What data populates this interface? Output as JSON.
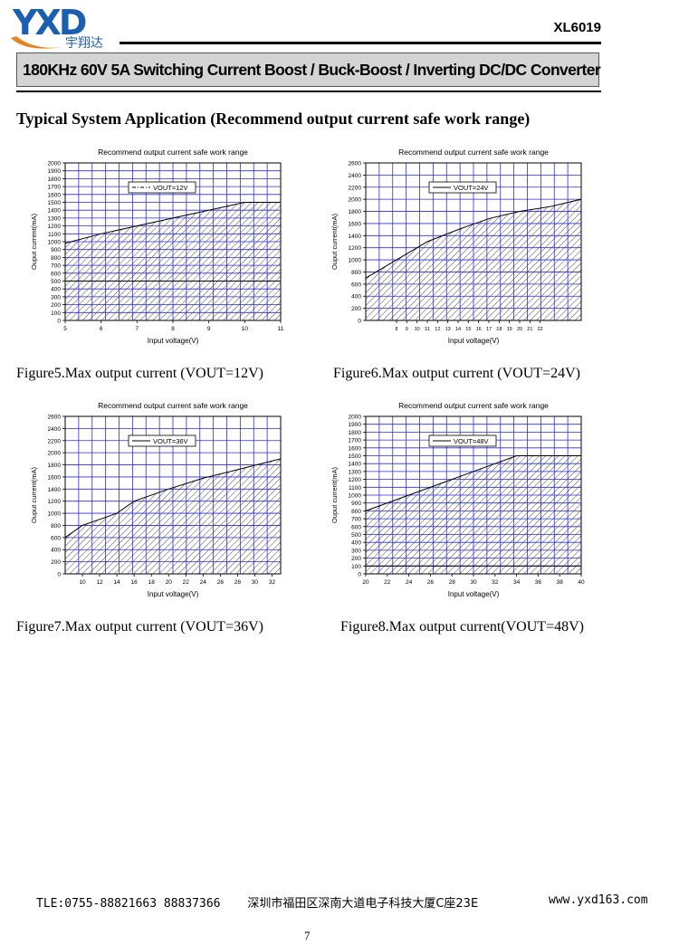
{
  "header": {
    "logo_letters": "YXD",
    "logo_text": "宇翔达",
    "part_number": "XL6019",
    "title": "180KHz 60V 5A Switching Current Boost / Buck-Boost / Inverting DC/DC Converter",
    "colors": {
      "logo_blue": "#1b5fae",
      "logo_orange": "#e8821e",
      "title_bg": "#d4d4d4"
    }
  },
  "section": {
    "heading": "Typical System Application (Recommend output current safe work range)"
  },
  "captions": [
    "Figure5.Max output current (VOUT=12V)",
    "Figure6.Max output current (VOUT=24V)",
    "Figure7.Max output current (VOUT=36V)",
    "Figure8.Max output current(VOUT=48V)"
  ],
  "chart_data": [
    {
      "type": "area",
      "title": "Recommend output current safe work range",
      "xlabel": "Input voltage(V)",
      "ylabel": "Ouput current(mA)",
      "legend": "VOUT=12V",
      "legend_style": "dash-dot",
      "xlim": [
        5,
        11
      ],
      "ylim": [
        0,
        2000
      ],
      "x_ticks": [
        "5",
        "6",
        "7",
        "8",
        "9",
        "10",
        "11"
      ],
      "y_ticks": [
        "0",
        "100",
        "200",
        "300",
        "400",
        "500",
        "600",
        "700",
        "800",
        "900",
        "1000",
        "1100",
        "1200",
        "1300",
        "1400",
        "1500",
        "1600",
        "1700",
        "1800",
        "1900",
        "2000"
      ],
      "grid": true,
      "points": [
        [
          5,
          980
        ],
        [
          6,
          1100
        ],
        [
          7,
          1200
        ],
        [
          8,
          1300
        ],
        [
          9,
          1400
        ],
        [
          10,
          1500
        ],
        [
          11,
          1500
        ]
      ],
      "reference_line": 500
    },
    {
      "type": "area",
      "title": "Recommend output current safe work range",
      "xlabel": "Input voltage(V)",
      "ylabel": "Ouput current(mA)",
      "legend": "VOUT=24V",
      "legend_style": "solid",
      "xlim": [
        5,
        26
      ],
      "ylim": [
        0,
        2600
      ],
      "x_ticks": [
        "8",
        "9",
        "10",
        "11",
        "12",
        "13",
        "14",
        "15",
        "16",
        "17",
        "18",
        "19",
        "20",
        "21",
        "22"
      ],
      "y_ticks": [
        "0",
        "200",
        "400",
        "600",
        "800",
        "1000",
        "1200",
        "1400",
        "1600",
        "1800",
        "2000",
        "2200",
        "2400",
        "2600"
      ],
      "grid": true,
      "points": [
        [
          5,
          700
        ],
        [
          8,
          1000
        ],
        [
          11,
          1300
        ],
        [
          14,
          1500
        ],
        [
          17,
          1680
        ],
        [
          20,
          1800
        ],
        [
          23,
          1880
        ],
        [
          26,
          2000
        ]
      ]
    },
    {
      "type": "area",
      "title": "Recommend output current safe work range",
      "xlabel": "Input voltage(V)",
      "ylabel": "Ouput current(mA)",
      "legend": "VOUT=36V",
      "legend_style": "solid",
      "xlim": [
        8,
        33
      ],
      "ylim": [
        0,
        2600
      ],
      "x_ticks": [
        "10",
        "12",
        "14",
        "16",
        "18",
        "20",
        "22",
        "24",
        "26",
        "28",
        "30",
        "32"
      ],
      "y_ticks": [
        "0",
        "200",
        "400",
        "600",
        "800",
        "1000",
        "1200",
        "1400",
        "1600",
        "1800",
        "2000",
        "2200",
        "2400",
        "2600"
      ],
      "grid": true,
      "points": [
        [
          8,
          600
        ],
        [
          10,
          800
        ],
        [
          14,
          1000
        ],
        [
          16,
          1200
        ],
        [
          20,
          1400
        ],
        [
          24,
          1580
        ],
        [
          28,
          1720
        ],
        [
          33,
          1900
        ]
      ]
    },
    {
      "type": "area",
      "title": "Recommend output current safe work range",
      "xlabel": "Input voltage(V)",
      "ylabel": "Ouput current(mA)",
      "legend": "VOUT=48V",
      "legend_style": "solid",
      "xlim": [
        20,
        40
      ],
      "ylim": [
        0,
        2000
      ],
      "x_ticks": [
        "20",
        "22",
        "24",
        "26",
        "28",
        "30",
        "32",
        "34",
        "36",
        "38",
        "40"
      ],
      "y_ticks": [
        "0",
        "100",
        "200",
        "300",
        "400",
        "500",
        "600",
        "700",
        "800",
        "900",
        "1000",
        "1100",
        "1200",
        "1300",
        "1400",
        "1500",
        "1600",
        "1700",
        "1800",
        "1900",
        "2000"
      ],
      "grid": true,
      "points": [
        [
          20,
          800
        ],
        [
          24,
          1000
        ],
        [
          28,
          1200
        ],
        [
          32,
          1400
        ],
        [
          34,
          1500
        ],
        [
          40,
          1500
        ]
      ],
      "reference_line": 100
    }
  ],
  "footer": {
    "contact": "TLE:0755-88821663  88837366",
    "address": "深圳市福田区深南大道电子科技大厦C座23E",
    "website": "www.yxd163.com",
    "page_number": "7"
  }
}
